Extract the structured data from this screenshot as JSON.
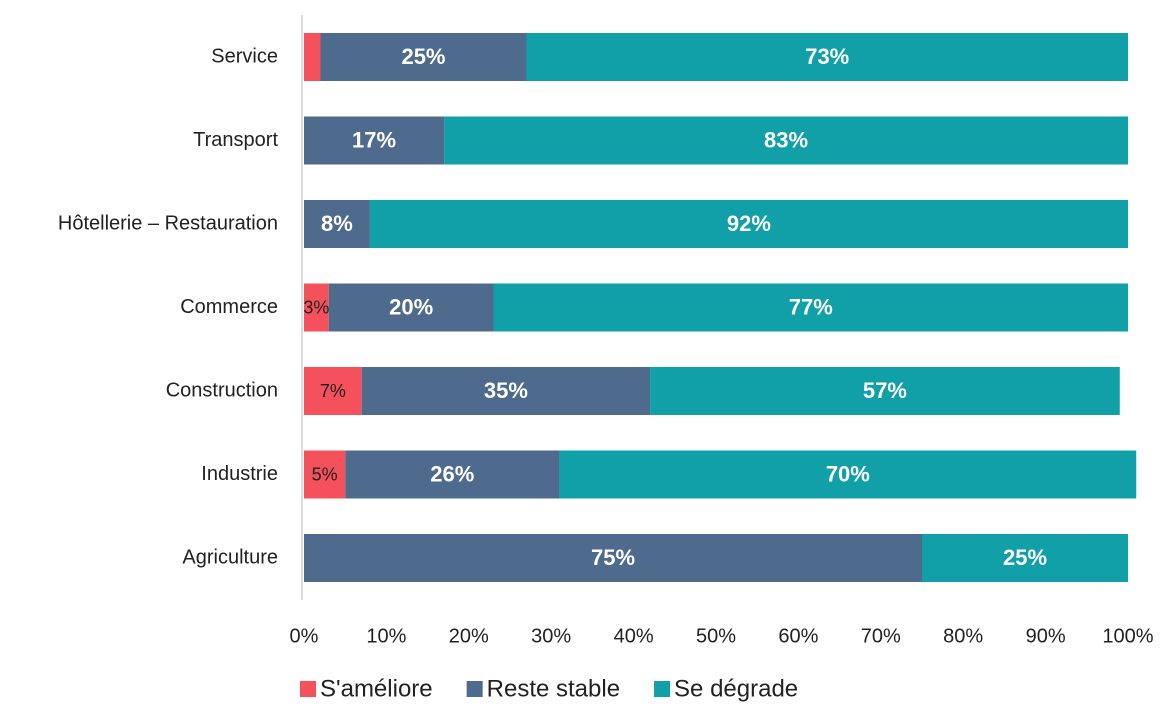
{
  "chart_data": {
    "type": "stacked-bar-horizontal",
    "categories": [
      "Service",
      "Transport",
      "Hôtellerie – Restauration",
      "Commerce",
      "Construction",
      "Industrie",
      "Agriculture"
    ],
    "series": [
      {
        "name": "S'améliore",
        "color": "#f4515c",
        "values": [
          2,
          0,
          0,
          3,
          7,
          5,
          0
        ],
        "value_labels": [
          null,
          null,
          null,
          "3%",
          "7%",
          "5%",
          null
        ]
      },
      {
        "name": "Reste stable",
        "color": "#4e6a8c",
        "values": [
          25,
          17,
          8,
          20,
          35,
          26,
          75
        ],
        "value_labels": [
          "25%",
          "17%",
          "8%",
          "20%",
          "35%",
          "26%",
          "75%"
        ]
      },
      {
        "name": "Se dégrade",
        "color": "#12a0a8",
        "values": [
          73,
          83,
          92,
          77,
          57,
          70,
          25
        ],
        "value_labels": [
          "73%",
          "83%",
          "92%",
          "77%",
          "57%",
          "70%",
          "25%"
        ]
      }
    ],
    "xlim": [
      0,
      100
    ],
    "xticks": [
      {
        "value": 0,
        "label": "0%"
      },
      {
        "value": 10,
        "label": "10%"
      },
      {
        "value": 20,
        "label": "20%"
      },
      {
        "value": 30,
        "label": "30%"
      },
      {
        "value": 40,
        "label": "40%"
      },
      {
        "value": 50,
        "label": "50%"
      },
      {
        "value": 60,
        "label": "60%"
      },
      {
        "value": 70,
        "label": "70%"
      },
      {
        "value": 80,
        "label": "80%"
      },
      {
        "value": 90,
        "label": "90%"
      },
      {
        "value": 100,
        "label": "100%"
      }
    ],
    "legend": "bottom"
  }
}
